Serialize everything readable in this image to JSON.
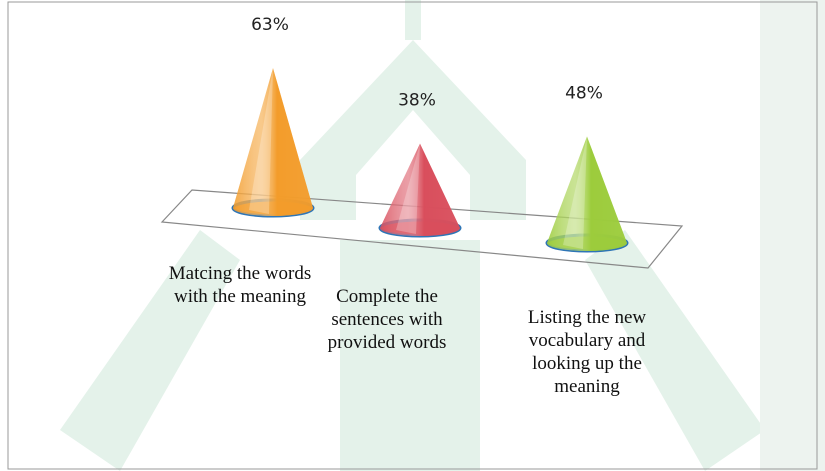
{
  "chart_data": {
    "type": "cone",
    "categories": [
      "Matcing the words with the meaning",
      "Complete the sentences with provided words",
      "Listing the new vocabulary and looking up the meaning"
    ],
    "values": [
      63,
      38,
      48
    ],
    "value_labels": [
      "63%",
      "38%",
      "48%"
    ],
    "colors": [
      "#f39c2b",
      "#d94f5c",
      "#9ccc3c"
    ]
  }
}
